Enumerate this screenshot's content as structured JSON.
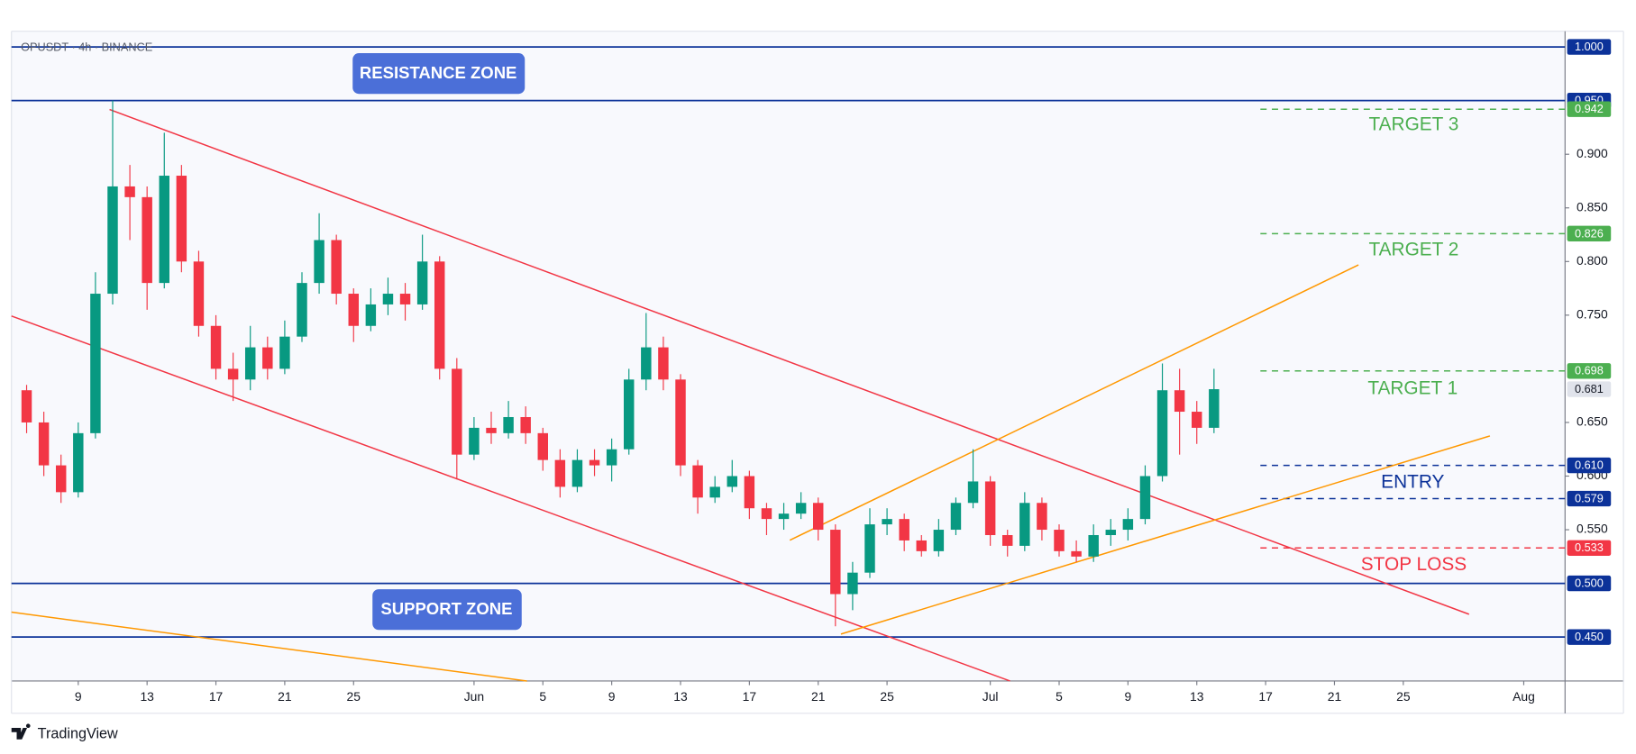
{
  "chart_data": {
    "type": "candlestick",
    "title": "OPUSDT · 4h · BINANCE",
    "watermark": "TradingView",
    "x": [
      6,
      7,
      8,
      9,
      10,
      11,
      12,
      13,
      14,
      15,
      16,
      17,
      18,
      19,
      20,
      21,
      22,
      23,
      24,
      25,
      26,
      27,
      28,
      29,
      30,
      31,
      32,
      33,
      34,
      35,
      36,
      37,
      38,
      39,
      40,
      41,
      42,
      43,
      44,
      45,
      46,
      47,
      48,
      49,
      50,
      51,
      52,
      53,
      54,
      55,
      56,
      57,
      58,
      59,
      60,
      61,
      62,
      63,
      64,
      65,
      66,
      67,
      68,
      69,
      70,
      71,
      72,
      73,
      74,
      75
    ],
    "open": [
      0.68,
      0.65,
      0.61,
      0.585,
      0.64,
      0.77,
      0.87,
      0.86,
      0.78,
      0.88,
      0.8,
      0.74,
      0.7,
      0.69,
      0.72,
      0.7,
      0.73,
      0.78,
      0.82,
      0.77,
      0.74,
      0.76,
      0.77,
      0.76,
      0.8,
      0.7,
      0.62,
      0.645,
      0.64,
      0.655,
      0.64,
      0.615,
      0.59,
      0.615,
      0.61,
      0.625,
      0.69,
      0.72,
      0.69,
      0.61,
      0.58,
      0.59,
      0.6,
      0.57,
      0.56,
      0.565,
      0.575,
      0.55,
      0.49,
      0.51,
      0.555,
      0.56,
      0.54,
      0.53,
      0.55,
      0.575,
      0.595,
      0.545,
      0.535,
      0.575,
      0.55,
      0.53,
      0.525,
      0.545,
      0.55,
      0.56,
      0.6,
      0.68,
      0.66,
      0.645
    ],
    "high": [
      0.685,
      0.66,
      0.62,
      0.65,
      0.79,
      0.95,
      0.89,
      0.87,
      0.92,
      0.89,
      0.81,
      0.75,
      0.715,
      0.74,
      0.73,
      0.745,
      0.79,
      0.845,
      0.825,
      0.775,
      0.775,
      0.785,
      0.78,
      0.825,
      0.805,
      0.71,
      0.655,
      0.66,
      0.67,
      0.665,
      0.645,
      0.625,
      0.625,
      0.625,
      0.635,
      0.7,
      0.752,
      0.73,
      0.695,
      0.615,
      0.6,
      0.615,
      0.605,
      0.575,
      0.575,
      0.585,
      0.58,
      0.555,
      0.52,
      0.57,
      0.57,
      0.565,
      0.545,
      0.56,
      0.58,
      0.625,
      0.6,
      0.55,
      0.585,
      0.58,
      0.555,
      0.54,
      0.555,
      0.56,
      0.57,
      0.61,
      0.705,
      0.7,
      0.67,
      0.7
    ],
    "low": [
      0.64,
      0.6,
      0.575,
      0.58,
      0.635,
      0.76,
      0.82,
      0.755,
      0.775,
      0.79,
      0.73,
      0.69,
      0.67,
      0.68,
      0.69,
      0.695,
      0.725,
      0.77,
      0.76,
      0.725,
      0.735,
      0.75,
      0.745,
      0.755,
      0.69,
      0.597,
      0.615,
      0.63,
      0.635,
      0.63,
      0.605,
      0.58,
      0.585,
      0.6,
      0.595,
      0.62,
      0.68,
      0.68,
      0.6,
      0.565,
      0.575,
      0.585,
      0.56,
      0.545,
      0.55,
      0.56,
      0.54,
      0.46,
      0.475,
      0.505,
      0.545,
      0.53,
      0.525,
      0.525,
      0.545,
      0.57,
      0.535,
      0.525,
      0.53,
      0.54,
      0.525,
      0.52,
      0.52,
      0.535,
      0.54,
      0.555,
      0.595,
      0.62,
      0.63,
      0.64
    ],
    "close": [
      0.65,
      0.61,
      0.585,
      0.64,
      0.77,
      0.87,
      0.86,
      0.78,
      0.88,
      0.8,
      0.74,
      0.7,
      0.69,
      0.72,
      0.7,
      0.73,
      0.78,
      0.82,
      0.77,
      0.74,
      0.76,
      0.77,
      0.76,
      0.8,
      0.7,
      0.62,
      0.645,
      0.64,
      0.655,
      0.64,
      0.615,
      0.59,
      0.615,
      0.61,
      0.625,
      0.69,
      0.72,
      0.69,
      0.61,
      0.58,
      0.59,
      0.6,
      0.57,
      0.56,
      0.565,
      0.575,
      0.55,
      0.49,
      0.51,
      0.555,
      0.56,
      0.54,
      0.53,
      0.55,
      0.575,
      0.595,
      0.545,
      0.535,
      0.575,
      0.55,
      0.53,
      0.525,
      0.545,
      0.55,
      0.56,
      0.6,
      0.68,
      0.66,
      0.645,
      0.681
    ],
    "up_color": "#089981",
    "down_color": "#f23645",
    "xlim": [
      5.12,
      95.4
    ],
    "xticks": [
      {
        "value": 9,
        "label": "9"
      },
      {
        "value": 13,
        "label": "13"
      },
      {
        "value": 17,
        "label": "17"
      },
      {
        "value": 21,
        "label": "21"
      },
      {
        "value": 25,
        "label": "25"
      },
      {
        "value": 32,
        "label": "Jun"
      },
      {
        "value": 36,
        "label": "5"
      },
      {
        "value": 40,
        "label": "9"
      },
      {
        "value": 44,
        "label": "13"
      },
      {
        "value": 48,
        "label": "17"
      },
      {
        "value": 52,
        "label": "21"
      },
      {
        "value": 56,
        "label": "25"
      },
      {
        "value": 62,
        "label": "Jul"
      },
      {
        "value": 66,
        "label": "5"
      },
      {
        "value": 70,
        "label": "9"
      },
      {
        "value": 74,
        "label": "13"
      },
      {
        "value": 78,
        "label": "17"
      },
      {
        "value": 82,
        "label": "21"
      },
      {
        "value": 86,
        "label": "25"
      },
      {
        "value": 93,
        "label": "Aug"
      }
    ],
    "ylim": [
      0.409,
      1.0146
    ],
    "yticks": [
      {
        "value": 0.55,
        "label": "0.550"
      },
      {
        "value": 0.6,
        "label": "0.600"
      },
      {
        "value": 0.65,
        "label": "0.650"
      },
      {
        "value": 0.75,
        "label": "0.750"
      },
      {
        "value": 0.8,
        "label": "0.800"
      },
      {
        "value": 0.85,
        "label": "0.850"
      },
      {
        "value": 0.9,
        "label": "0.900"
      }
    ],
    "levels": [
      {
        "value": 1.0,
        "label": "1.000",
        "color": "#0c3299",
        "style": "solid"
      },
      {
        "value": 0.95,
        "label": "0.950",
        "color": "#0c3299",
        "style": "solid"
      },
      {
        "value": 0.942,
        "label": "0.942",
        "color": "#4caf50",
        "style": "dashed"
      },
      {
        "value": 0.826,
        "label": "0.826",
        "color": "#4caf50",
        "style": "dashed"
      },
      {
        "value": 0.698,
        "label": "0.698",
        "color": "#4caf50",
        "style": "dashed"
      },
      {
        "value": 0.61,
        "label": "0.610",
        "color": "#0c3299",
        "style": "dashed"
      },
      {
        "value": 0.579,
        "label": "0.579",
        "color": "#0c3299",
        "style": "dashed"
      },
      {
        "value": 0.533,
        "label": "0.533",
        "color": "#f23645",
        "style": "dashed"
      },
      {
        "value": 0.5,
        "label": "0.500",
        "color": "#0c3299",
        "style": "solid"
      },
      {
        "value": 0.45,
        "label": "0.450",
        "color": "#0c3299",
        "style": "solid"
      }
    ],
    "last_price": {
      "value": 0.681,
      "label": "0.681",
      "color": "#e0e3eb"
    },
    "zone_labels": [
      "RESISTANCE ZONE",
      "SUPPORT ZONE"
    ],
    "trade_labels": [
      "TARGET 3",
      "TARGET 2",
      "TARGET 1",
      "ENTRY",
      "STOP LOSS"
    ]
  }
}
